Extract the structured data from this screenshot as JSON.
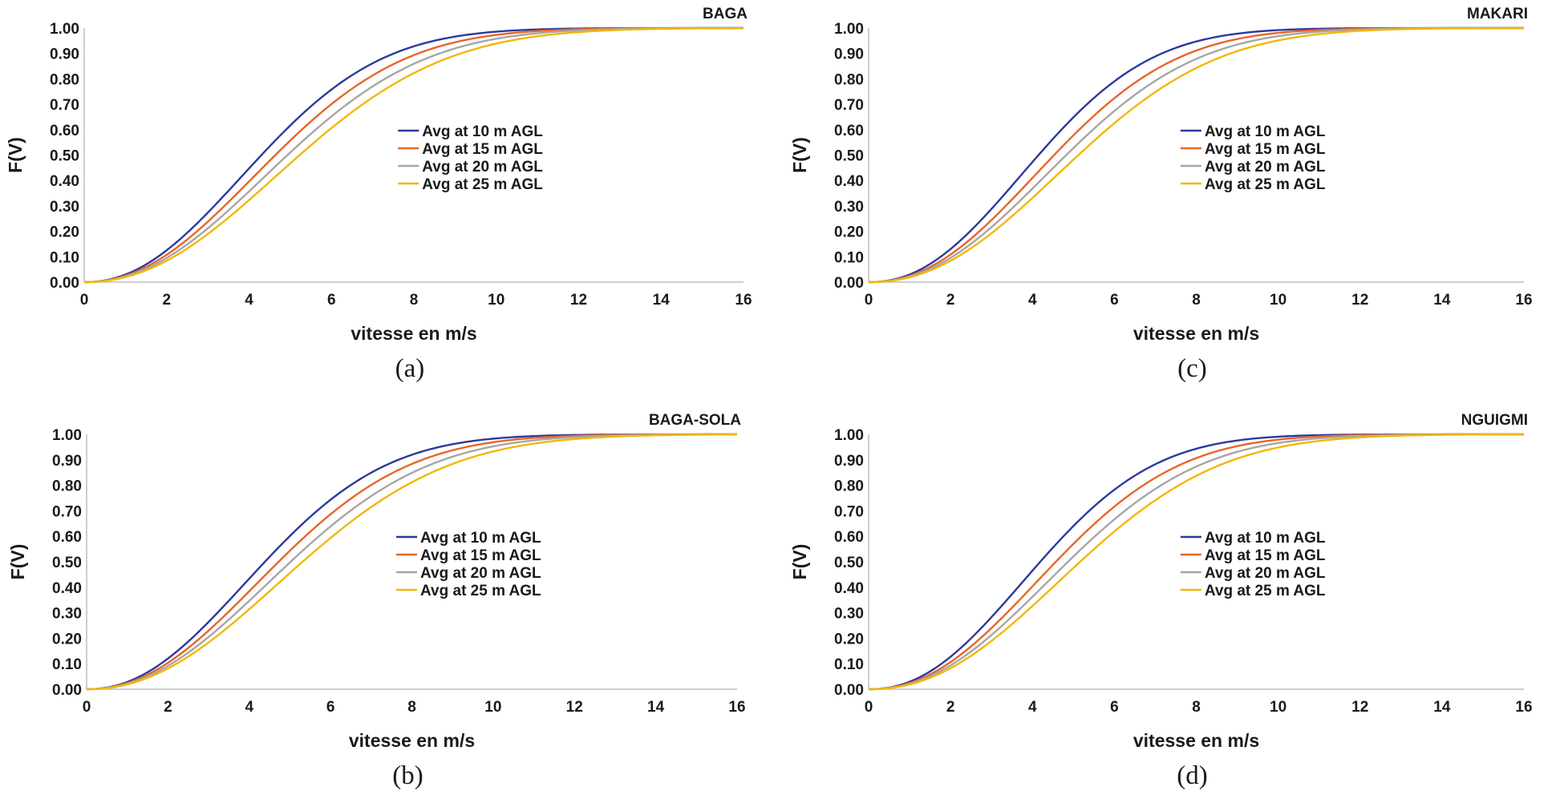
{
  "colors": {
    "avg10": "#2b3a9c",
    "avg15": "#e8652a",
    "avg20": "#a6a6a6",
    "avg25": "#f2b705"
  },
  "chart_data": [
    {
      "type": "line",
      "id": "baga",
      "title": "BAGA",
      "caption": "(a)",
      "xlabel": "vitesse en m/s",
      "ylabel": "F(V)",
      "xlim": [
        0,
        16
      ],
      "ylim": [
        0,
        1
      ],
      "x_ticks": [
        "0",
        "2",
        "4",
        "6",
        "8",
        "10",
        "12",
        "14",
        "16"
      ],
      "y_ticks": [
        "0.00",
        "0.10",
        "0.20",
        "0.30",
        "0.40",
        "0.50",
        "0.60",
        "0.70",
        "0.80",
        "0.90",
        "1.00"
      ],
      "legend_position": "center-right",
      "series": [
        {
          "name": "Avg at 10 m AGL",
          "color_key": "avg10",
          "weibull_k": 2.15,
          "weibull_c": 5.1
        },
        {
          "name": "Avg at 15 m AGL",
          "color_key": "avg15",
          "weibull_k": 2.15,
          "weibull_c": 5.5
        },
        {
          "name": "Avg at 20 m AGL",
          "color_key": "avg20",
          "weibull_k": 2.15,
          "weibull_c": 5.85
        },
        {
          "name": "Avg at 25 m AGL",
          "color_key": "avg25",
          "weibull_k": 2.15,
          "weibull_c": 6.2
        }
      ]
    },
    {
      "type": "line",
      "id": "makari",
      "title": "MAKARI",
      "caption": "(c)",
      "xlabel": "vitesse en m/s",
      "ylabel": "F(V)",
      "xlim": [
        0,
        16
      ],
      "ylim": [
        0,
        1
      ],
      "x_ticks": [
        "0",
        "2",
        "4",
        "6",
        "8",
        "10",
        "12",
        "14",
        "16"
      ],
      "y_ticks": [
        "0.00",
        "0.10",
        "0.20",
        "0.30",
        "0.40",
        "0.50",
        "0.60",
        "0.70",
        "0.80",
        "0.90",
        "1.00"
      ],
      "legend_position": "center-right",
      "series": [
        {
          "name": "Avg at 10 m AGL",
          "color_key": "avg10",
          "weibull_k": 2.2,
          "weibull_c": 4.9
        },
        {
          "name": "Avg at 15 m AGL",
          "color_key": "avg15",
          "weibull_k": 2.2,
          "weibull_c": 5.35
        },
        {
          "name": "Avg at 20 m AGL",
          "color_key": "avg20",
          "weibull_k": 2.2,
          "weibull_c": 5.7
        },
        {
          "name": "Avg at 25 m AGL",
          "color_key": "avg25",
          "weibull_k": 2.2,
          "weibull_c": 6.05
        }
      ]
    },
    {
      "type": "line",
      "id": "baga-sola",
      "title": "BAGA-SOLA",
      "caption": "(b)",
      "xlabel": "vitesse en m/s",
      "ylabel": "F(V)",
      "xlim": [
        0,
        16
      ],
      "ylim": [
        0,
        1
      ],
      "x_ticks": [
        "0",
        "2",
        "4",
        "6",
        "8",
        "10",
        "12",
        "14",
        "16"
      ],
      "y_ticks": [
        "0.00",
        "0.10",
        "0.20",
        "0.30",
        "0.40",
        "0.50",
        "0.60",
        "0.70",
        "0.80",
        "0.90",
        "1.00"
      ],
      "legend_position": "center-right",
      "series": [
        {
          "name": "Avg at 10 m AGL",
          "color_key": "avg10",
          "weibull_k": 2.15,
          "weibull_c": 5.2
        },
        {
          "name": "Avg at 15 m AGL",
          "color_key": "avg15",
          "weibull_k": 2.15,
          "weibull_c": 5.6
        },
        {
          "name": "Avg at 20 m AGL",
          "color_key": "avg20",
          "weibull_k": 2.15,
          "weibull_c": 5.95
        },
        {
          "name": "Avg at 25 m AGL",
          "color_key": "avg25",
          "weibull_k": 2.15,
          "weibull_c": 6.3
        }
      ]
    },
    {
      "type": "line",
      "id": "nguigmi",
      "title": "NGUIGMI",
      "caption": "(d)",
      "xlabel": "vitesse en m/s",
      "ylabel": "F(V)",
      "xlim": [
        0,
        16
      ],
      "ylim": [
        0,
        1
      ],
      "x_ticks": [
        "0",
        "2",
        "4",
        "6",
        "8",
        "10",
        "12",
        "14",
        "16"
      ],
      "y_ticks": [
        "0.00",
        "0.10",
        "0.20",
        "0.30",
        "0.40",
        "0.50",
        "0.60",
        "0.70",
        "0.80",
        "0.90",
        "1.00"
      ],
      "legend_position": "center-right",
      "series": [
        {
          "name": "Avg at 10 m AGL",
          "color_key": "avg10",
          "weibull_k": 2.2,
          "weibull_c": 4.95
        },
        {
          "name": "Avg at 15 m AGL",
          "color_key": "avg15",
          "weibull_k": 2.2,
          "weibull_c": 5.4
        },
        {
          "name": "Avg at 20 m AGL",
          "color_key": "avg20",
          "weibull_k": 2.2,
          "weibull_c": 5.75
        },
        {
          "name": "Avg at 25 m AGL",
          "color_key": "avg25",
          "weibull_k": 2.2,
          "weibull_c": 6.1
        }
      ]
    }
  ]
}
